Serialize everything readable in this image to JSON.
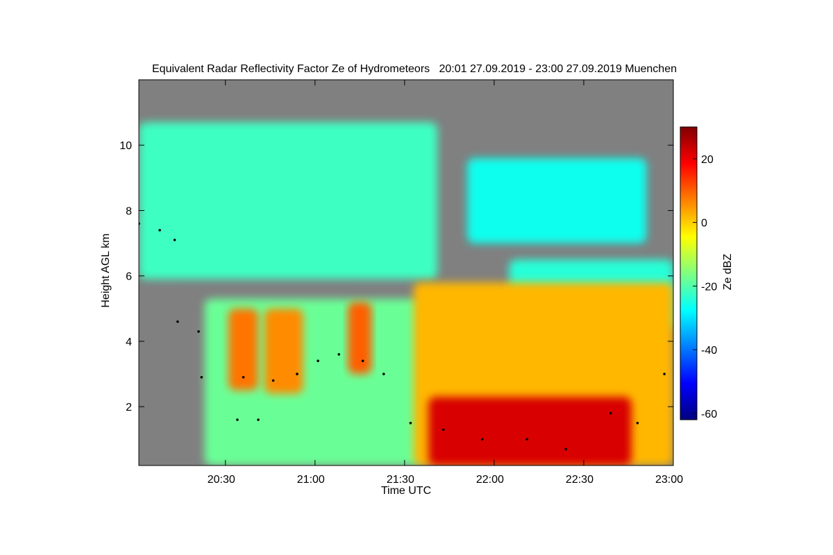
{
  "chart_data": {
    "type": "heatmap",
    "title": "Equivalent Radar Reflectivity Factor Ze of Hydrometeors   20:01 27.09.2019 - 23:00 27.09.2019 Muenchen",
    "xlabel": "Time UTC",
    "ylabel": "Height AGL km",
    "colorbar_label": "Ze dBZ",
    "x_ticks": [
      {
        "value": 29,
        "label": "20:30"
      },
      {
        "value": 59,
        "label": "21:00"
      },
      {
        "value": 89,
        "label": "21:30"
      },
      {
        "value": 119,
        "label": "22:00"
      },
      {
        "value": 149,
        "label": "22:30"
      },
      {
        "value": 179,
        "label": "23:00"
      }
    ],
    "xlim": [
      0,
      179
    ],
    "y_ticks": [
      2,
      4,
      6,
      8,
      10
    ],
    "ylim": [
      0.2,
      12.0
    ],
    "colorbar_ticks": [
      20,
      0,
      -20,
      -40,
      -60
    ],
    "colorbar_range": [
      -62,
      30
    ],
    "background_color": "#808080",
    "colormap": [
      "#000080",
      "#0000ff",
      "#0080ff",
      "#00ffff",
      "#80ff80",
      "#ffff00",
      "#ff8000",
      "#ff0000",
      "#800000"
    ],
    "regions": [
      {
        "x": [
          0,
          100
        ],
        "y": [
          5.9,
          10.7
        ],
        "level": -22
      },
      {
        "x": [
          110,
          170
        ],
        "y": [
          7.0,
          9.6
        ],
        "level": -26
      },
      {
        "x": [
          124,
          179
        ],
        "y": [
          4.4,
          6.5
        ],
        "level": -24
      },
      {
        "x": [
          22,
          95
        ],
        "y": [
          0.2,
          5.3
        ],
        "level": -18
      },
      {
        "x": [
          30,
          40
        ],
        "y": [
          2.5,
          5.0
        ],
        "level": 8
      },
      {
        "x": [
          42,
          55
        ],
        "y": [
          2.4,
          5.0
        ],
        "level": 6
      },
      {
        "x": [
          70,
          78
        ],
        "y": [
          3.0,
          5.2
        ],
        "level": 10
      },
      {
        "x": [
          92,
          179
        ],
        "y": [
          0.2,
          5.8
        ],
        "level": 2
      },
      {
        "x": [
          97,
          165
        ],
        "y": [
          0.2,
          2.3
        ],
        "level": 22
      }
    ],
    "detection_points": [
      {
        "x": 0,
        "y": 7.6
      },
      {
        "x": 7,
        "y": 7.4
      },
      {
        "x": 12,
        "y": 7.1
      },
      {
        "x": 13,
        "y": 4.6
      },
      {
        "x": 20,
        "y": 4.3
      },
      {
        "x": 21,
        "y": 2.9
      },
      {
        "x": 35,
        "y": 2.9
      },
      {
        "x": 45,
        "y": 2.8
      },
      {
        "x": 53,
        "y": 3.0
      },
      {
        "x": 60,
        "y": 3.4
      },
      {
        "x": 67,
        "y": 3.6
      },
      {
        "x": 75,
        "y": 3.4
      },
      {
        "x": 82,
        "y": 3.0
      },
      {
        "x": 33,
        "y": 1.6
      },
      {
        "x": 40,
        "y": 1.6
      },
      {
        "x": 91,
        "y": 1.5
      },
      {
        "x": 102,
        "y": 1.3
      },
      {
        "x": 115,
        "y": 1.0
      },
      {
        "x": 130,
        "y": 1.0
      },
      {
        "x": 143,
        "y": 0.7
      },
      {
        "x": 158,
        "y": 1.8
      },
      {
        "x": 167,
        "y": 1.5
      },
      {
        "x": 176,
        "y": 3.0
      }
    ]
  }
}
